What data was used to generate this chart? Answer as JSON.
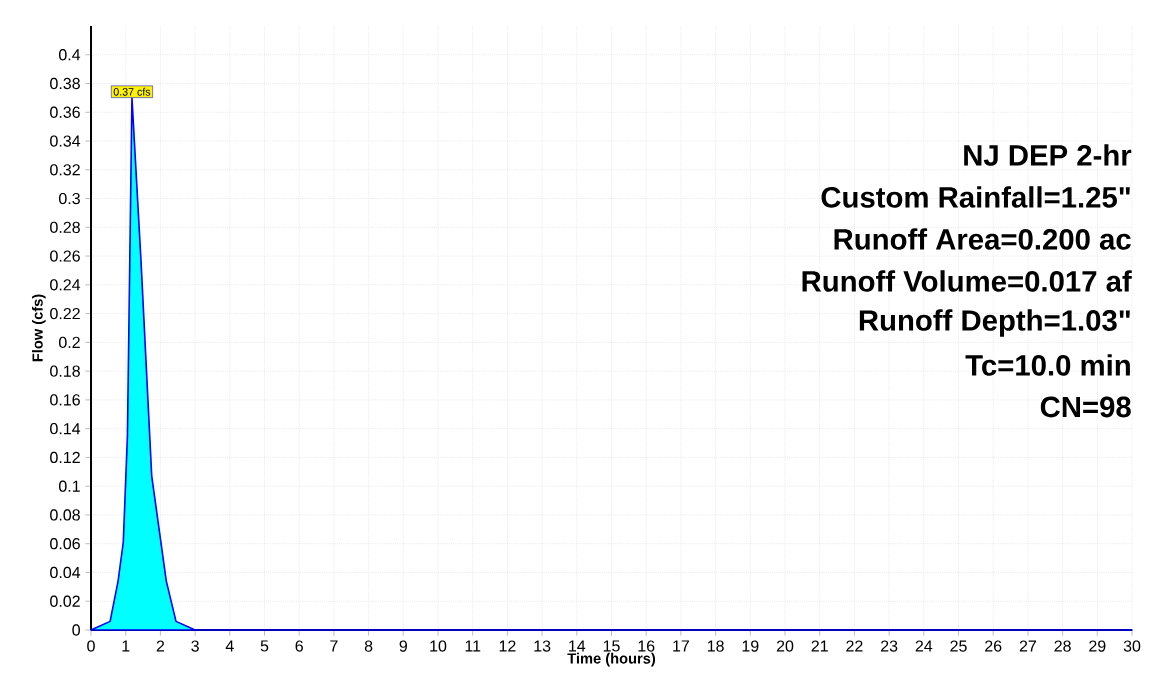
{
  "chart_data": {
    "type": "area",
    "xlabel": "Time  (hours)",
    "ylabel": "Flow  (cfs)",
    "x": [
      0,
      0.55,
      0.78,
      0.93,
      1.05,
      1.18,
      1.44,
      1.63,
      1.75,
      2.17,
      2.45,
      3,
      30
    ],
    "series": [
      {
        "color": "#00ffff",
        "values": [
          0,
          0.006,
          0.034,
          0.061,
          0.135,
          0.37,
          0.257,
          0.165,
          0.107,
          0.034,
          0.006,
          0,
          0
        ]
      }
    ],
    "xlim": [
      0,
      30
    ],
    "xticks": [
      0,
      1,
      2,
      3,
      4,
      5,
      6,
      7,
      8,
      9,
      10,
      11,
      12,
      13,
      14,
      15,
      16,
      17,
      18,
      19,
      20,
      21,
      22,
      23,
      24,
      25,
      26,
      27,
      28,
      29,
      30
    ],
    "ylim": [
      0,
      0.42
    ],
    "yticks": [
      0,
      0.02,
      0.04,
      0.06,
      0.08,
      0.1,
      0.12,
      0.14,
      0.16,
      0.18,
      0.2,
      0.22,
      0.24,
      0.26,
      0.28,
      0.3,
      0.32,
      0.34,
      0.36,
      0.38,
      0.4
    ],
    "grid": true,
    "annotations": [
      {
        "text": "0.37 cfs",
        "x": 1.18,
        "y": 0.37
      },
      "NJ DEP 2-hr",
      "Custom Rainfall=1.25\"",
      "Runoff Area=0.200 ac",
      "Runoff Volume=0.017 af",
      "Runoff Depth=1.03\"",
      "Tc=10.0 min",
      "CN=98"
    ]
  }
}
